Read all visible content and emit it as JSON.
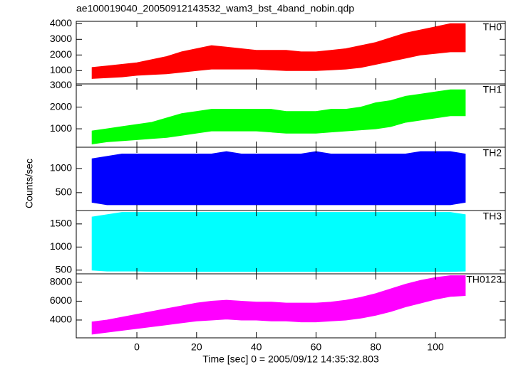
{
  "chart_data": {
    "type": "band",
    "title": "ae100019040_20050912143532_wam3_bst_4band_nobin.qdp",
    "x_label": "Time [sec] 0 = 2005/09/12 14:35:32.803",
    "y_label": "Counts/sec",
    "xlim": [
      -20.3,
      123.4
    ],
    "xticks": [
      0,
      20,
      40,
      60,
      80,
      100
    ],
    "x": [
      -15,
      -10,
      -5,
      0,
      5,
      10,
      15,
      20,
      25,
      30,
      35,
      40,
      45,
      50,
      55,
      60,
      65,
      70,
      75,
      80,
      85,
      90,
      95,
      100,
      105,
      110
    ],
    "panels": [
      {
        "name": "TH0",
        "color": "#ff0000",
        "ylim": [
          150,
          4150
        ],
        "yticks": [
          1000,
          2000,
          3000,
          4000
        ],
        "low": [
          500,
          550,
          600,
          700,
          750,
          800,
          900,
          1000,
          1100,
          1100,
          1100,
          1100,
          1050,
          1000,
          1000,
          1000,
          1050,
          1100,
          1200,
          1400,
          1600,
          1800,
          2000,
          2100,
          2200,
          2200
        ],
        "high": [
          1200,
          1300,
          1400,
          1500,
          1700,
          1900,
          2200,
          2400,
          2600,
          2500,
          2400,
          2300,
          2300,
          2300,
          2200,
          2200,
          2300,
          2400,
          2600,
          2800,
          3100,
          3400,
          3600,
          3800,
          4000,
          4000
        ]
      },
      {
        "name": "TH1",
        "color": "#00ff00",
        "ylim": [
          150,
          3070
        ],
        "yticks": [
          1000,
          2000,
          3000
        ],
        "low": [
          300,
          400,
          450,
          500,
          550,
          600,
          700,
          800,
          900,
          900,
          900,
          900,
          850,
          800,
          800,
          800,
          850,
          900,
          950,
          1000,
          1100,
          1300,
          1400,
          1500,
          1600,
          1600
        ],
        "high": [
          900,
          1000,
          1100,
          1200,
          1300,
          1500,
          1700,
          1800,
          1900,
          1900,
          1900,
          1900,
          1900,
          1800,
          1800,
          1800,
          1900,
          1900,
          2000,
          2200,
          2300,
          2500,
          2600,
          2700,
          2800,
          2800
        ]
      },
      {
        "name": "TH2",
        "color": "#0000ff",
        "ylim": [
          130,
          1440
        ],
        "yticks": [
          500,
          1000
        ],
        "low": [
          300,
          250,
          250,
          250,
          250,
          250,
          250,
          250,
          250,
          250,
          250,
          250,
          250,
          250,
          250,
          250,
          250,
          250,
          250,
          250,
          250,
          250,
          250,
          250,
          250,
          300
        ],
        "high": [
          1200,
          1250,
          1300,
          1300,
          1300,
          1300,
          1300,
          1300,
          1300,
          1350,
          1300,
          1300,
          1300,
          1300,
          1300,
          1350,
          1300,
          1300,
          1300,
          1300,
          1300,
          1300,
          1350,
          1350,
          1350,
          1300
        ]
      },
      {
        "name": "TH3",
        "color": "#00ffff",
        "ylim": [
          420,
          1790
        ],
        "yticks": [
          500,
          1000,
          1500
        ],
        "low": [
          500,
          480,
          480,
          480,
          470,
          470,
          470,
          470,
          470,
          470,
          470,
          470,
          470,
          470,
          470,
          470,
          470,
          470,
          470,
          470,
          470,
          470,
          470,
          470,
          470,
          480
        ],
        "high": [
          1650,
          1700,
          1750,
          1750,
          1750,
          1750,
          1750,
          1750,
          1750,
          1750,
          1750,
          1750,
          1750,
          1750,
          1750,
          1750,
          1750,
          1750,
          1750,
          1750,
          1750,
          1750,
          1750,
          1750,
          1750,
          1700
        ]
      },
      {
        "name": "TH0123",
        "color": "#ff00ff",
        "ylim": [
          2110,
          8900
        ],
        "yticks": [
          4000,
          6000,
          8000
        ],
        "low": [
          2500,
          2700,
          2900,
          3100,
          3300,
          3500,
          3700,
          3900,
          4000,
          4100,
          4000,
          4000,
          3900,
          3900,
          3800,
          3800,
          3900,
          4000,
          4200,
          4500,
          4900,
          5400,
          5800,
          6200,
          6500,
          6600
        ],
        "high": [
          3800,
          4000,
          4300,
          4600,
          4900,
          5200,
          5500,
          5800,
          6000,
          6100,
          6000,
          5900,
          5900,
          5800,
          5800,
          5800,
          5900,
          6100,
          6400,
          6800,
          7300,
          7800,
          8200,
          8500,
          8700,
          8700
        ]
      }
    ]
  }
}
